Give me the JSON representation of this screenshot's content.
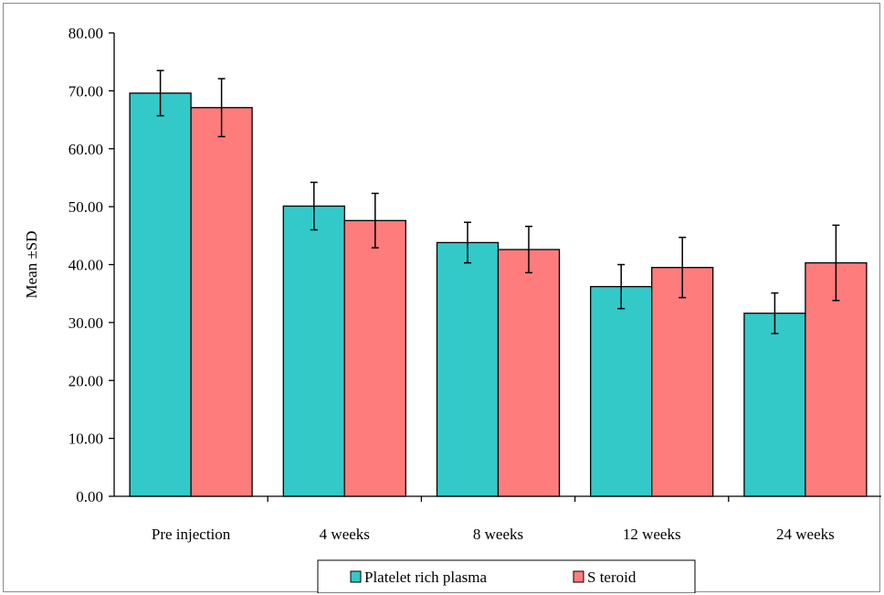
{
  "chart_data": {
    "type": "bar",
    "title": "",
    "xlabel": "",
    "ylabel": "Mean ±SD",
    "ylim": [
      0,
      80
    ],
    "yticks": [
      "0.00",
      "10.00",
      "20.00",
      "30.00",
      "40.00",
      "50.00",
      "60.00",
      "70.00",
      "80.00"
    ],
    "categories": [
      "Pre injection",
      "4 weeks",
      "8 weeks",
      "12 weeks",
      "24 weeks"
    ],
    "series": [
      {
        "name": "Platelet rich plasma",
        "color": "#33c9c9",
        "values": [
          69.6,
          50.1,
          43.8,
          36.2,
          31.6
        ],
        "sd": [
          3.9,
          4.1,
          3.5,
          3.8,
          3.5
        ]
      },
      {
        "name": "S teroid",
        "color": "#ff7c7c",
        "values": [
          67.1,
          47.6,
          42.6,
          39.5,
          40.3
        ],
        "sd": [
          5.0,
          4.7,
          4.0,
          5.2,
          6.5
        ]
      }
    ],
    "grid": false,
    "legend_position": "bottom-center"
  }
}
